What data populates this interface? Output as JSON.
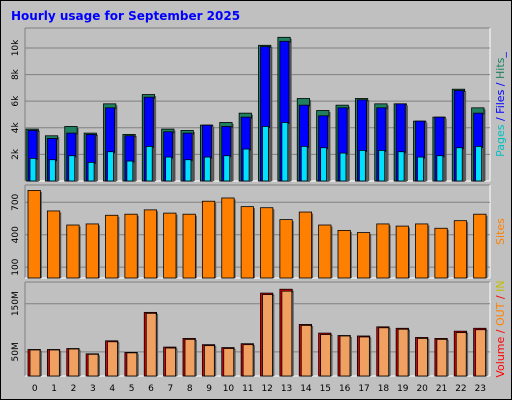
{
  "chart_data": {
    "type": "bar",
    "title": "Hourly usage for September 2025",
    "categories": [
      "0",
      "1",
      "2",
      "3",
      "4",
      "5",
      "6",
      "7",
      "8",
      "9",
      "10",
      "11",
      "12",
      "13",
      "14",
      "15",
      "16",
      "17",
      "18",
      "19",
      "20",
      "21",
      "22",
      "23"
    ],
    "panels": [
      {
        "id": "top",
        "ticks": [
          {
            "value": 2000,
            "label": "2k"
          },
          {
            "value": 4000,
            "label": "4k"
          },
          {
            "value": 6000,
            "label": "6k"
          },
          {
            "value": 8000,
            "label": "8k"
          },
          {
            "value": 10000,
            "label": "10k"
          }
        ],
        "ylim": [
          0,
          11500
        ],
        "side_label": [
          {
            "text": "Pages",
            "color": "#00c0c0"
          },
          {
            "text": " / ",
            "color": "#0000ff"
          },
          {
            "text": "Files",
            "color": "#0000ff"
          },
          {
            "text": " / ",
            "color": "#0000ff"
          },
          {
            "text": "Hits",
            "color": "#208060"
          },
          {
            "text": "_",
            "color": "#0000ff"
          }
        ],
        "series": [
          {
            "name": "Hits",
            "color": "#208060",
            "values": [
              3900,
              3400,
              4100,
              3600,
              5800,
              3500,
              6500,
              3900,
              3800,
              4200,
              4400,
              5100,
              10200,
              10800,
              6200,
              5300,
              5700,
              6200,
              5800,
              5800,
              4500,
              4800,
              6900,
              5500
            ]
          },
          {
            "name": "Files",
            "color": "#0000ff",
            "values": [
              3800,
              3200,
              3600,
              3500,
              5500,
              3400,
              6300,
              3700,
              3600,
              4200,
              4100,
              4800,
              10100,
              10500,
              5700,
              4900,
              5500,
              6100,
              5500,
              5800,
              4500,
              4800,
              6800,
              5100
            ]
          },
          {
            "name": "Pages",
            "color": "#00e0ff",
            "values": [
              1700,
              1600,
              1900,
              1400,
              2200,
              1500,
              2600,
              1800,
              1600,
              1800,
              1900,
              2400,
              4100,
              4400,
              2600,
              2500,
              2100,
              2300,
              2300,
              2200,
              1800,
              1900,
              2500,
              2600
            ]
          }
        ]
      },
      {
        "id": "mid",
        "ticks": [
          {
            "value": 100,
            "label": "100"
          },
          {
            "value": 400,
            "label": "400"
          },
          {
            "value": 700,
            "label": "700"
          }
        ],
        "ylim": [
          0,
          860
        ],
        "side_label": [
          {
            "text": "Sites",
            "color": "#ff8000"
          }
        ],
        "series": [
          {
            "name": "Sites",
            "color": "#ff8000",
            "values": [
              810,
              620,
              490,
              500,
              580,
              590,
              630,
              600,
              590,
              710,
              740,
              660,
              650,
              540,
              610,
              490,
              440,
              420,
              500,
              480,
              500,
              460,
              530,
              590
            ]
          }
        ]
      },
      {
        "id": "bottom",
        "ticks": [
          {
            "value": 50,
            "label": "50M"
          },
          {
            "value": 150,
            "label": "150M"
          }
        ],
        "ylim": [
          0,
          195
        ],
        "side_label": [
          {
            "text": "Volume",
            "color": "#ff0000"
          },
          {
            "text": " / ",
            "color": "#ff0000"
          },
          {
            "text": "OUT",
            "color": "#ff8000"
          },
          {
            "text": " / ",
            "color": "#ff0000"
          },
          {
            "text": "IN",
            "color": "#c0c000"
          }
        ],
        "series": [
          {
            "name": "Volume",
            "color": "#e00000",
            "values": [
              55,
              55,
              57,
              46,
              73,
              49,
              132,
              60,
              78,
              65,
              59,
              67,
              172,
              180,
              107,
              89,
              84,
              83,
              102,
              99,
              80,
              78,
              93,
              99
            ]
          },
          {
            "name": "OUT",
            "color": "#f0a060",
            "values": [
              54,
              54,
              56,
              45,
              71,
              48,
              130,
              58,
              76,
              63,
              57,
              65,
              169,
              176,
              105,
              86,
              83,
              81,
              100,
              97,
              78,
              76,
              90,
              96
            ]
          }
        ]
      }
    ]
  }
}
